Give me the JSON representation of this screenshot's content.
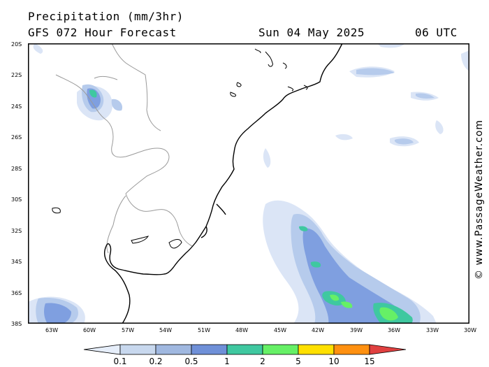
{
  "header": {
    "title": "Precipitation (mm/3hr)",
    "subtitle": "GFS 072 Hour Forecast",
    "valid_date": "Sun 04 May 2025",
    "valid_time": "06 UTC"
  },
  "axes": {
    "lat_labels": [
      "20S",
      "22S",
      "24S",
      "26S",
      "28S",
      "30S",
      "32S",
      "34S",
      "36S",
      "38S"
    ],
    "lon_labels": [
      "63W",
      "60W",
      "57W",
      "54W",
      "51W",
      "48W",
      "45W",
      "42W",
      "39W",
      "36W",
      "33W",
      "30W"
    ]
  },
  "legend": {
    "labels": [
      "0.1",
      "0.2",
      "0.5",
      "1",
      "2",
      "5",
      "10",
      "15"
    ],
    "colors": [
      "#e6eefa",
      "#c8d8ee",
      "#a0b8e0",
      "#6f90d8",
      "#3fc8a0",
      "#66f066",
      "#ffe000",
      "#ff9010",
      "#e04040"
    ]
  },
  "watermark": "© www.PassageWeather.com",
  "colors": {
    "coast": "#000000",
    "border": "#999999",
    "frame": "#000000"
  }
}
